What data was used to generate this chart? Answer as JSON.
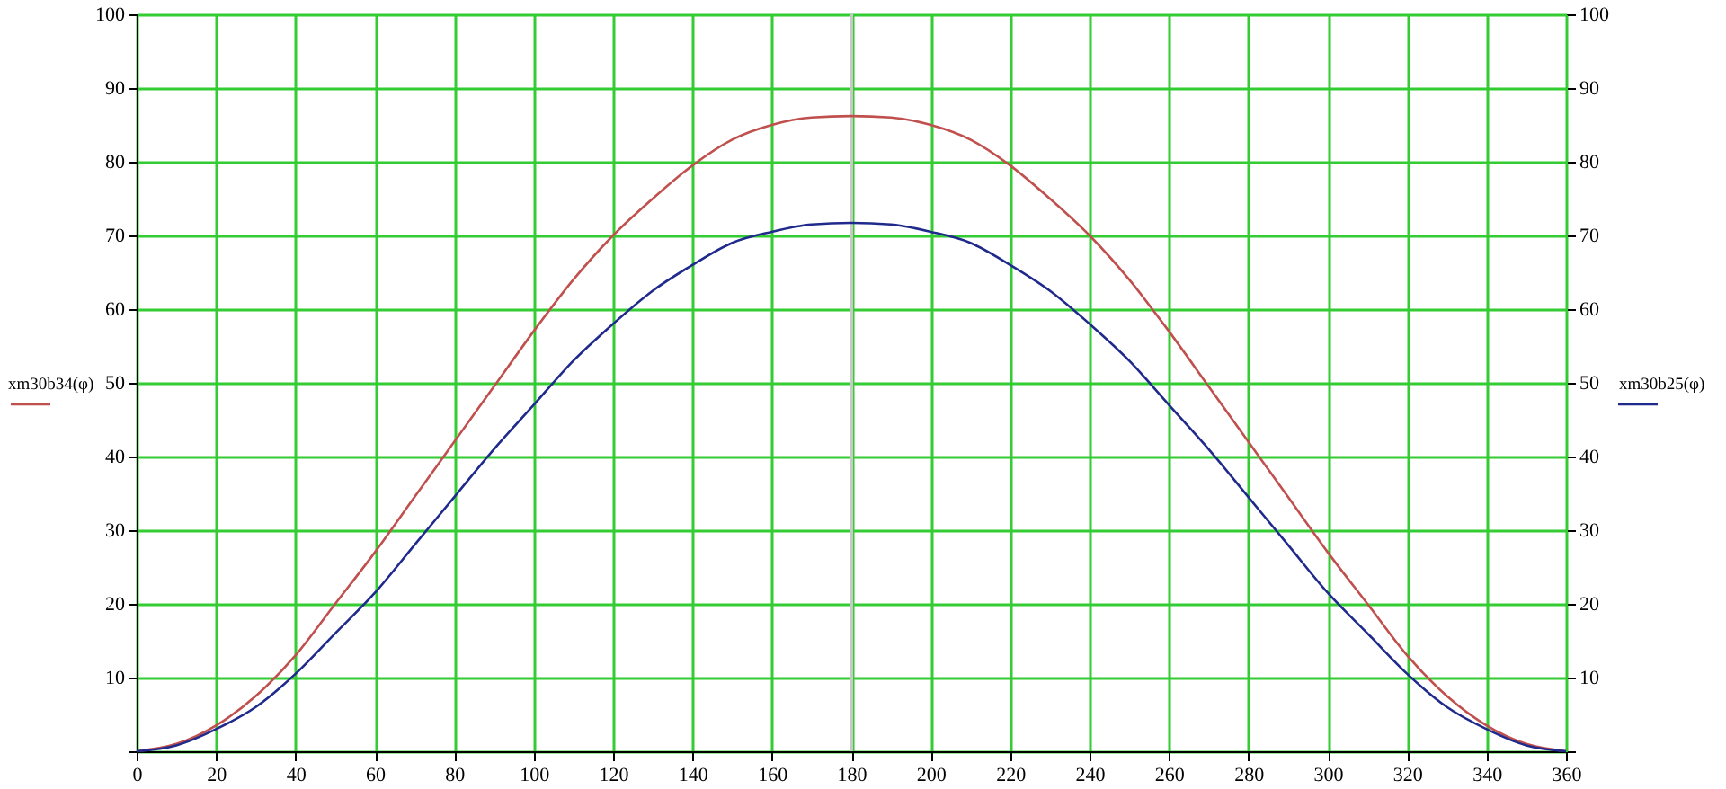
{
  "chart_data": {
    "type": "line",
    "ylabel": "xm30b34(φ)",
    "y2label": "xm30b25(φ)",
    "x": [
      0,
      10,
      20,
      30,
      40,
      50,
      60,
      70,
      80,
      90,
      100,
      110,
      120,
      130,
      140,
      150,
      160,
      170,
      180,
      190,
      200,
      210,
      220,
      230,
      240,
      250,
      260,
      270,
      280,
      290,
      300,
      310,
      320,
      330,
      340,
      350,
      360
    ],
    "series": [
      {
        "color": "#c0504d",
        "values": [
          0,
          1,
          3.5,
          7.5,
          13,
          20,
          27,
          34.5,
          42,
          49.5,
          57,
          64,
          70,
          75,
          79.5,
          83,
          85,
          86,
          86.2,
          86,
          85,
          83,
          79.5,
          75,
          70,
          64,
          57,
          49.5,
          42,
          34.5,
          27,
          20,
          13,
          7.5,
          3.5,
          1,
          0
        ]
      },
      {
        "color": "#1f2a8c",
        "axis": "y2",
        "values": [
          0,
          0.8,
          3,
          6,
          10.5,
          16,
          21.5,
          28,
          34.5,
          41,
          47,
          53,
          58,
          62.5,
          66,
          69,
          70.5,
          71.5,
          71.7,
          71.5,
          70.5,
          69,
          66,
          62.5,
          58,
          53,
          47,
          41,
          34.5,
          28,
          21.5,
          16,
          10.5,
          6,
          3,
          0.8,
          0
        ]
      }
    ],
    "xlim": [
      0,
      360
    ],
    "xticks": [
      0,
      20,
      40,
      60,
      80,
      100,
      120,
      140,
      160,
      180,
      200,
      220,
      240,
      260,
      280,
      300,
      320,
      340,
      360
    ],
    "ylim": [
      0,
      100
    ],
    "yticks": [
      {
        "value": 0,
        "label": null
      },
      10,
      20,
      30,
      40,
      50,
      60,
      70,
      80,
      90,
      100
    ],
    "y2lim": [
      0,
      100
    ],
    "y2ticks": [
      {
        "value": 0,
        "label": null
      },
      10,
      20,
      30,
      40,
      50,
      60,
      70,
      80,
      90,
      100
    ],
    "ref_lines": [
      {
        "axis": "x",
        "value": 180,
        "color": "#c8c8c8"
      }
    ],
    "grid": true,
    "marker": "none",
    "line_style": "solid"
  }
}
